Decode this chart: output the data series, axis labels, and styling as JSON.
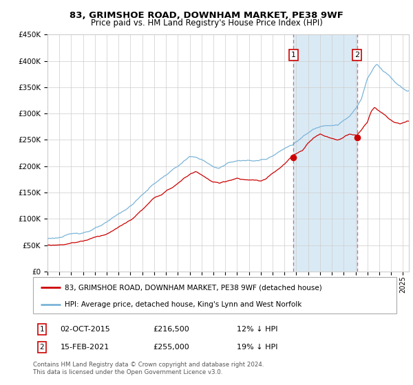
{
  "title": "83, GRIMSHOE ROAD, DOWNHAM MARKET, PE38 9WF",
  "subtitle": "Price paid vs. HM Land Registry's House Price Index (HPI)",
  "legend_line1": "83, GRIMSHOE ROAD, DOWNHAM MARKET, PE38 9WF (detached house)",
  "legend_line2": "HPI: Average price, detached house, King's Lynn and West Norfolk",
  "annotation1_date": "02-OCT-2015",
  "annotation1_price": "£216,500",
  "annotation1_hpi": "12% ↓ HPI",
  "annotation2_date": "15-FEB-2021",
  "annotation2_price": "£255,000",
  "annotation2_hpi": "19% ↓ HPI",
  "footer": "Contains HM Land Registry data © Crown copyright and database right 2024.\nThis data is licensed under the Open Government Licence v3.0.",
  "hpi_color": "#7ab4d8",
  "price_color": "#cc0000",
  "shade_color": "#daeaf5",
  "grid_color": "#cccccc",
  "dot_color": "#cc0000",
  "vline_color": "#dd6666",
  "background_color": "#ffffff",
  "sale1_year": 2015.75,
  "sale2_year": 2021.12,
  "sale1_value": 216500,
  "sale2_value": 255000,
  "ylim_max": 450000,
  "ylim_min": 0,
  "xlim_min": 1995,
  "xlim_max": 2025.5
}
